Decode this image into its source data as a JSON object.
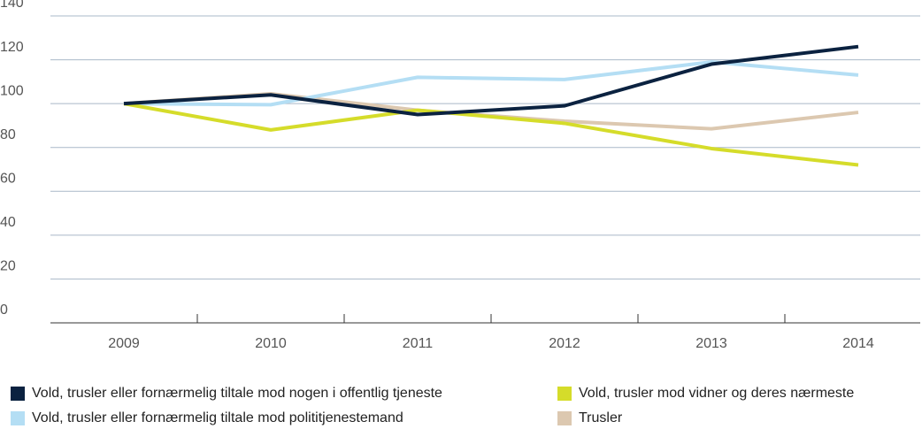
{
  "chart_data": {
    "type": "line",
    "categories": [
      "2009",
      "2010",
      "2011",
      "2012",
      "2013",
      "2014"
    ],
    "series": [
      {
        "name": "Vold, trusler eller fornærmelig tiltale mod nogen i offentlig tjeneste",
        "color": "#0b2240",
        "values": [
          100,
          104,
          95,
          99,
          118,
          126
        ]
      },
      {
        "name": "Vold, trusler mod vidner og deres nærmeste",
        "color": "#d5dc2a",
        "values": [
          100,
          88,
          97,
          91,
          79.5,
          72
        ]
      },
      {
        "name": "Vold, trusler eller fornærmelig tiltale mod polititjenestemand",
        "color": "#b4def4",
        "values": [
          100,
          99.5,
          112,
          111,
          119,
          113
        ]
      },
      {
        "name": "Trusler",
        "color": "#dcc8b0",
        "values": [
          100,
          104.5,
          97,
          92,
          88.5,
          96
        ]
      }
    ],
    "ylim": [
      0,
      140
    ],
    "yticks": [
      0,
      20,
      40,
      60,
      80,
      100,
      120,
      140
    ],
    "grid": true
  }
}
